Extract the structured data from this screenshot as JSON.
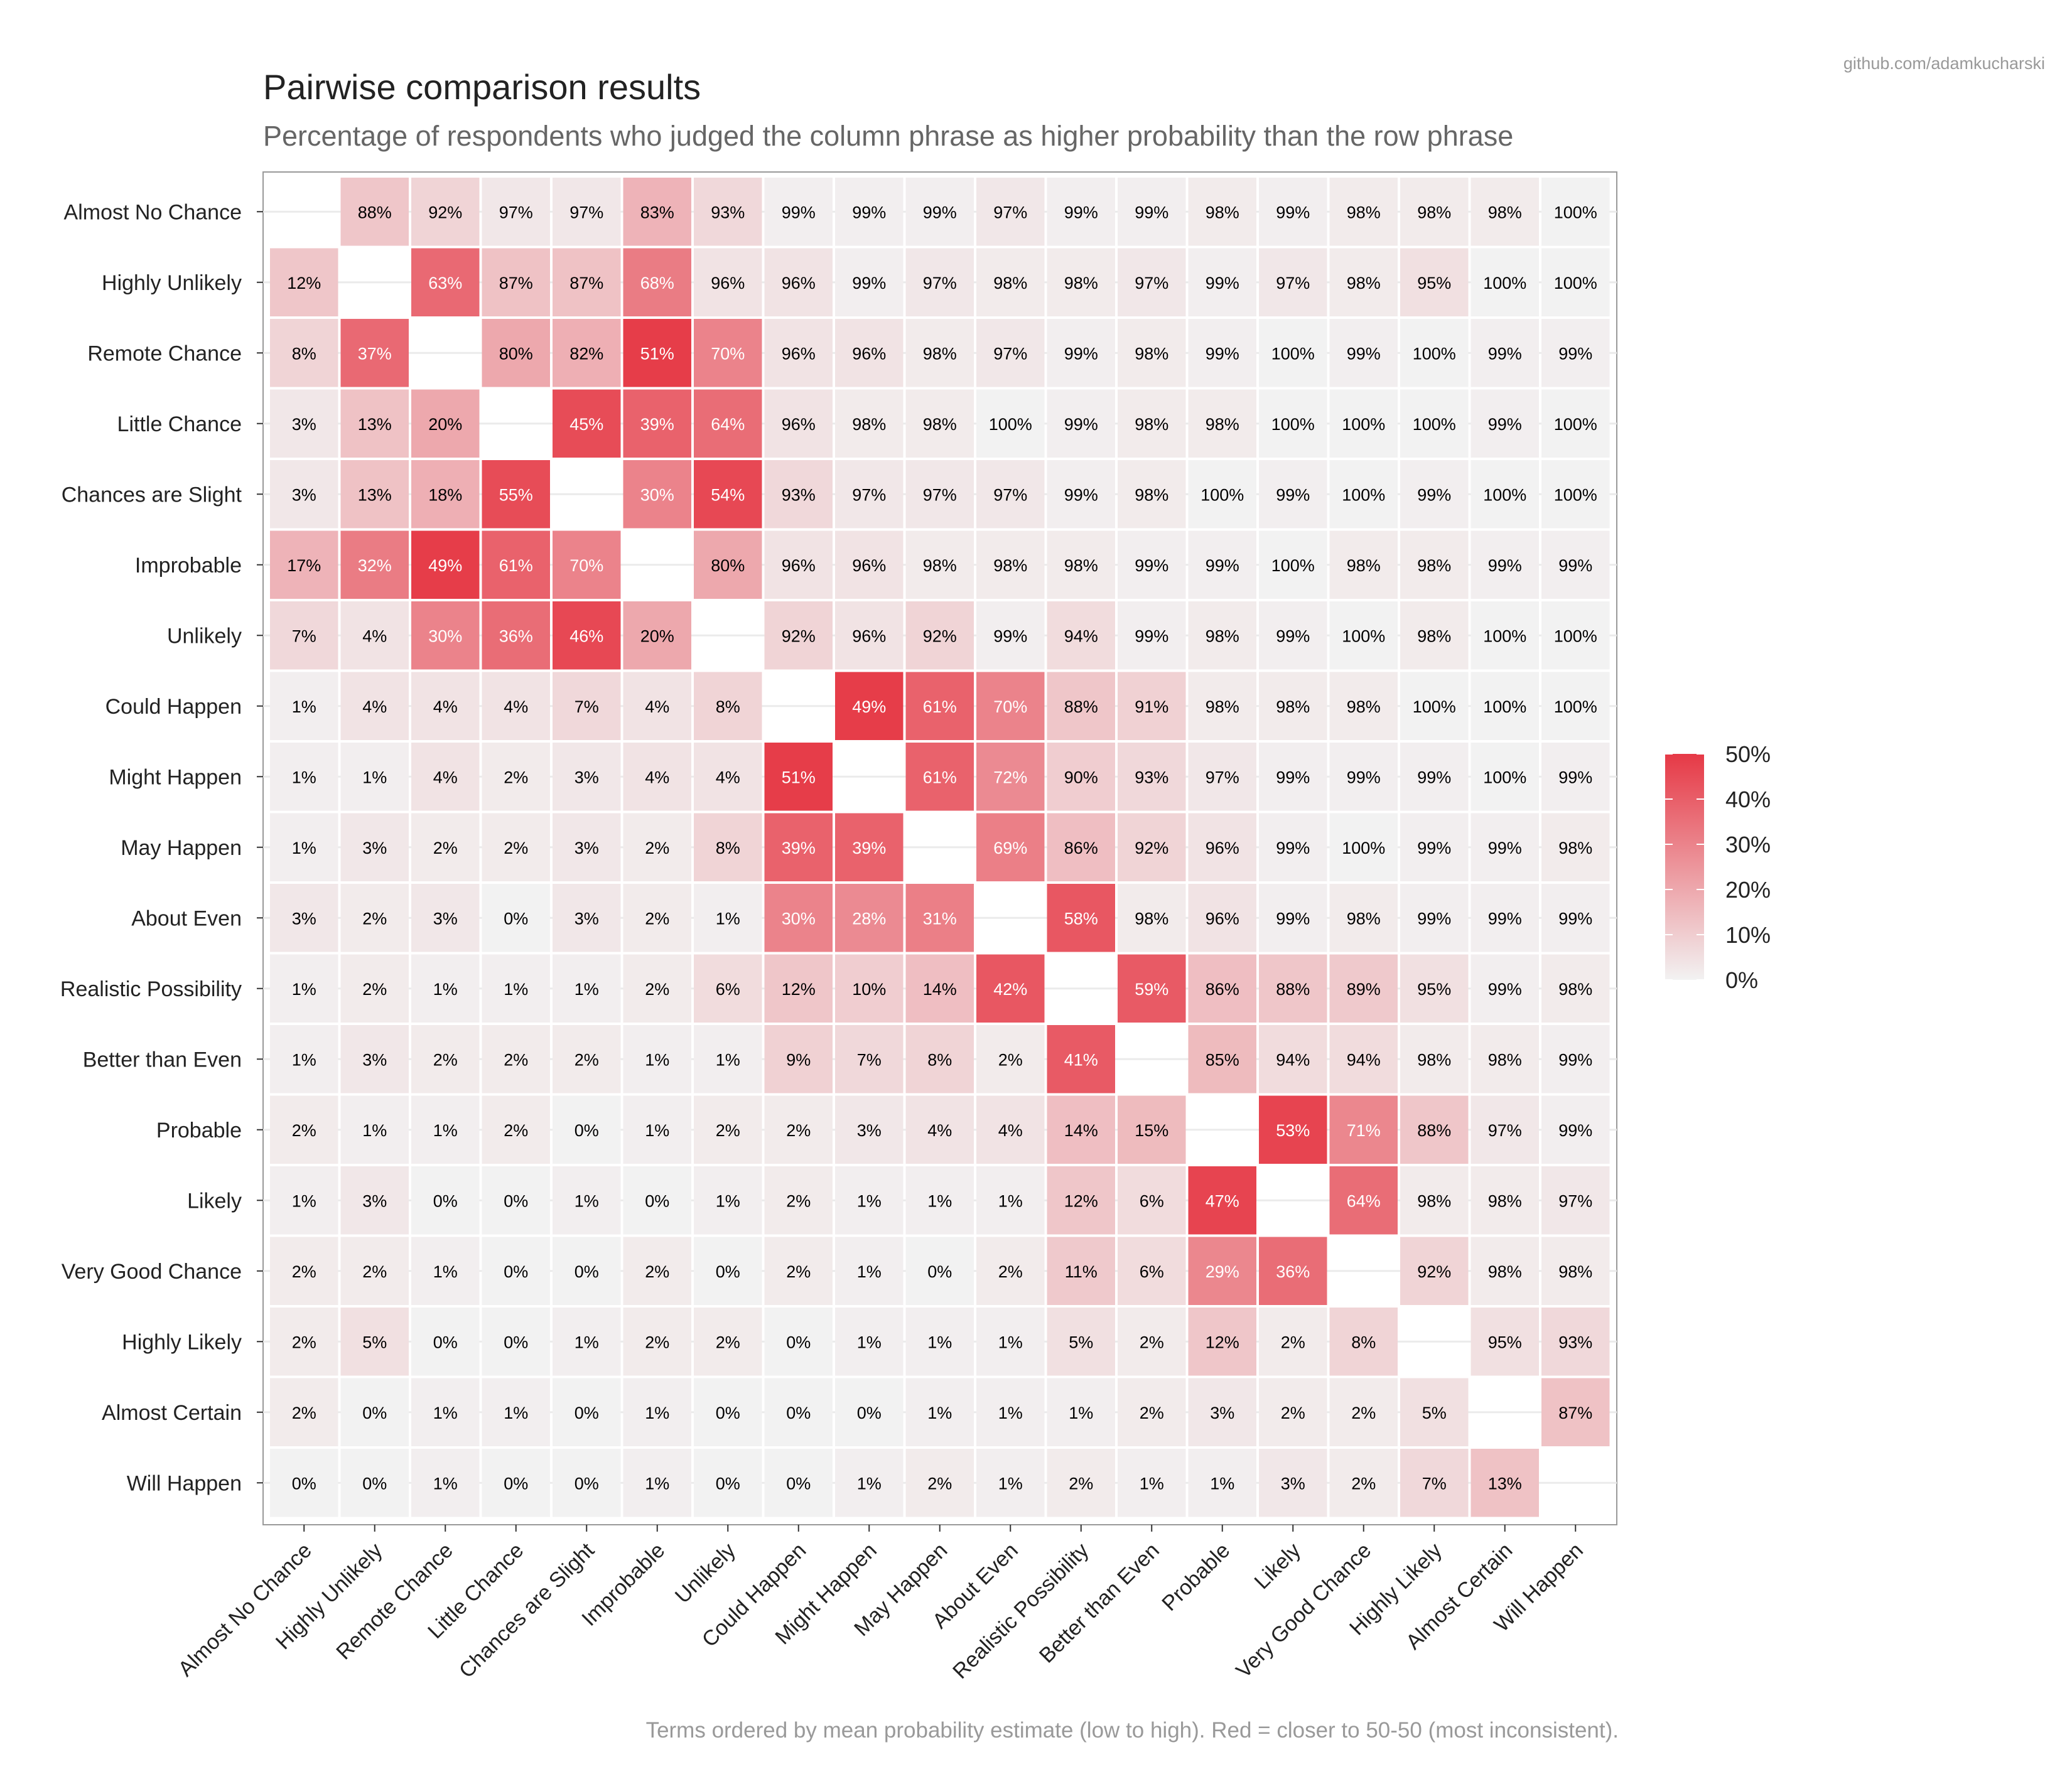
{
  "chart_data": {
    "type": "heatmap",
    "title": "Pairwise comparison results",
    "subtitle": "Percentage of respondents who judged the column phrase as higher probability than the row phrase",
    "credit": "github.com/adamkucharski",
    "caption": "Terms ordered by mean probability estimate (low to high). Red = closer to 50-50 (most inconsistent).",
    "terms": [
      "Almost No Chance",
      "Highly Unlikely",
      "Remote Chance",
      "Little Chance",
      "Chances are Slight",
      "Improbable",
      "Unlikely",
      "Could Happen",
      "Might Happen",
      "May Happen",
      "About Even",
      "Realistic Possibility",
      "Better than Even",
      "Probable",
      "Likely",
      "Very Good Chance",
      "Highly Likely",
      "Almost Certain",
      "Will Happen"
    ],
    "values": [
      [
        null,
        88,
        92,
        97,
        97,
        83,
        93,
        99,
        99,
        99,
        97,
        99,
        99,
        98,
        99,
        98,
        98,
        98,
        100
      ],
      [
        12,
        null,
        63,
        87,
        87,
        68,
        96,
        96,
        99,
        97,
        98,
        98,
        97,
        99,
        97,
        98,
        95,
        100,
        100
      ],
      [
        8,
        37,
        null,
        80,
        82,
        51,
        70,
        96,
        96,
        98,
        97,
        99,
        98,
        99,
        100,
        99,
        100,
        99,
        99
      ],
      [
        3,
        13,
        20,
        null,
        45,
        39,
        64,
        96,
        98,
        98,
        100,
        99,
        98,
        98,
        100,
        100,
        100,
        99,
        100
      ],
      [
        3,
        13,
        18,
        55,
        null,
        30,
        54,
        93,
        97,
        97,
        97,
        99,
        98,
        100,
        99,
        100,
        99,
        100,
        100
      ],
      [
        17,
        32,
        49,
        61,
        70,
        null,
        80,
        96,
        96,
        98,
        98,
        98,
        99,
        99,
        100,
        98,
        98,
        99,
        99
      ],
      [
        7,
        4,
        30,
        36,
        46,
        20,
        null,
        92,
        96,
        92,
        99,
        94,
        99,
        98,
        99,
        100,
        98,
        100,
        100
      ],
      [
        1,
        4,
        4,
        4,
        7,
        4,
        8,
        null,
        49,
        61,
        70,
        88,
        91,
        98,
        98,
        98,
        100,
        100,
        100
      ],
      [
        1,
        1,
        4,
        2,
        3,
        4,
        4,
        51,
        null,
        61,
        72,
        90,
        93,
        97,
        99,
        99,
        99,
        100,
        99
      ],
      [
        1,
        3,
        2,
        2,
        3,
        2,
        8,
        39,
        39,
        null,
        69,
        86,
        92,
        96,
        99,
        100,
        99,
        99,
        98
      ],
      [
        3,
        2,
        3,
        0,
        3,
        2,
        1,
        30,
        28,
        31,
        null,
        58,
        98,
        96,
        99,
        98,
        99,
        99,
        99
      ],
      [
        1,
        2,
        1,
        1,
        1,
        2,
        6,
        12,
        10,
        14,
        42,
        null,
        59,
        86,
        88,
        89,
        95,
        99,
        98
      ],
      [
        1,
        3,
        2,
        2,
        2,
        1,
        1,
        9,
        7,
        8,
        2,
        41,
        null,
        85,
        94,
        94,
        98,
        98,
        99
      ],
      [
        2,
        1,
        1,
        2,
        0,
        1,
        2,
        2,
        3,
        4,
        4,
        14,
        15,
        null,
        53,
        71,
        88,
        97,
        99
      ],
      [
        1,
        3,
        0,
        0,
        1,
        0,
        1,
        2,
        1,
        1,
        1,
        12,
        6,
        47,
        null,
        64,
        98,
        98,
        97
      ],
      [
        2,
        2,
        1,
        0,
        0,
        2,
        0,
        2,
        1,
        0,
        2,
        11,
        6,
        29,
        36,
        null,
        92,
        98,
        98
      ],
      [
        2,
        5,
        0,
        0,
        1,
        2,
        2,
        0,
        1,
        1,
        1,
        5,
        2,
        12,
        2,
        8,
        null,
        95,
        93
      ],
      [
        2,
        0,
        1,
        1,
        0,
        1,
        0,
        0,
        0,
        1,
        1,
        1,
        2,
        3,
        2,
        2,
        5,
        null,
        87
      ],
      [
        0,
        0,
        1,
        0,
        0,
        1,
        0,
        0,
        1,
        2,
        1,
        2,
        1,
        1,
        3,
        2,
        7,
        13,
        null
      ]
    ],
    "value_suffix": "%",
    "color_metric": "distance to 50-50 (min of value and 100 - value)",
    "legend": {
      "position": "right",
      "ticks": [
        "0%",
        "10%",
        "20%",
        "30%",
        "40%",
        "50%"
      ],
      "range": [
        0,
        50
      ],
      "low_color": "#f2f2f2",
      "high_color": "#e63946"
    },
    "grid": true
  }
}
